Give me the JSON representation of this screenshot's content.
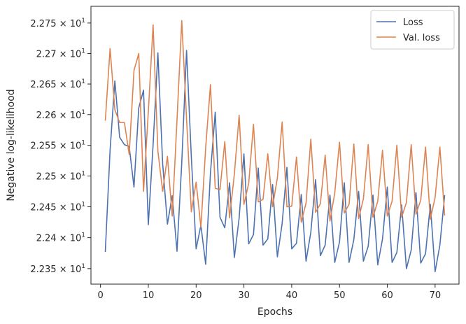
{
  "chart_data": {
    "type": "line",
    "title": "",
    "xlabel": "Epochs",
    "ylabel": "Negative log-likelihood",
    "xlim": [
      -2,
      75
    ],
    "ylim": [
      22.325,
      22.7775
    ],
    "y_scale": "log",
    "grid": false,
    "legend_position": "top-right",
    "x_ticks": [
      0,
      10,
      20,
      30,
      40,
      50,
      60,
      70
    ],
    "x_tick_labels": [
      "0",
      "10",
      "20",
      "30",
      "40",
      "50",
      "60",
      "70"
    ],
    "y_ticks": [
      22.35,
      22.4,
      22.45,
      22.5,
      22.55,
      22.6,
      22.65,
      22.7,
      22.75
    ],
    "y_tick_labels": [
      {
        "mantissa": "2.235",
        "base": "10",
        "exp": "1"
      },
      {
        "mantissa": "2.24",
        "base": "10",
        "exp": "1"
      },
      {
        "mantissa": "2.245",
        "base": "10",
        "exp": "1"
      },
      {
        "mantissa": "2.25",
        "base": "10",
        "exp": "1"
      },
      {
        "mantissa": "2.255",
        "base": "10",
        "exp": "1"
      },
      {
        "mantissa": "2.26",
        "base": "10",
        "exp": "1"
      },
      {
        "mantissa": "2.265",
        "base": "10",
        "exp": "1"
      },
      {
        "mantissa": "2.27",
        "base": "10",
        "exp": "1"
      },
      {
        "mantissa": "2.275",
        "base": "10",
        "exp": "1"
      }
    ],
    "x": [
      1,
      2,
      3,
      4,
      5,
      6,
      7,
      8,
      9,
      10,
      11,
      12,
      13,
      14,
      15,
      16,
      17,
      18,
      19,
      20,
      21,
      22,
      23,
      24,
      25,
      26,
      27,
      28,
      29,
      30,
      31,
      32,
      33,
      34,
      35,
      36,
      37,
      38,
      39,
      40,
      41,
      42,
      43,
      44,
      45,
      46,
      47,
      48,
      49,
      50,
      51,
      52,
      53,
      54,
      55,
      56,
      57,
      58,
      59,
      60,
      61,
      62,
      63,
      64,
      65,
      66,
      67,
      68,
      69,
      70,
      71,
      72
    ],
    "series": [
      {
        "name": "Loss",
        "color": "#4c72b0",
        "values": [
          22.377,
          22.542,
          22.655,
          22.563,
          22.551,
          22.548,
          22.482,
          22.611,
          22.64,
          22.421,
          22.551,
          22.701,
          22.52,
          22.422,
          22.468,
          22.378,
          22.522,
          22.705,
          22.531,
          22.382,
          22.42,
          22.357,
          22.505,
          22.604,
          22.433,
          22.416,
          22.489,
          22.368,
          22.432,
          22.536,
          22.39,
          22.405,
          22.513,
          22.388,
          22.398,
          22.486,
          22.369,
          22.423,
          22.514,
          22.382,
          22.391,
          22.47,
          22.362,
          22.409,
          22.494,
          22.371,
          22.388,
          22.469,
          22.36,
          22.393,
          22.489,
          22.36,
          22.397,
          22.475,
          22.362,
          22.386,
          22.469,
          22.356,
          22.398,
          22.482,
          22.36,
          22.376,
          22.453,
          22.35,
          22.38,
          22.473,
          22.359,
          22.374,
          22.454,
          22.345,
          22.388,
          22.469
        ]
      },
      {
        "name": "Val. loss",
        "color": "#dd8452",
        "values": [
          22.59,
          22.708,
          22.608,
          22.587,
          22.587,
          22.535,
          22.672,
          22.7,
          22.475,
          22.604,
          22.747,
          22.541,
          22.475,
          22.532,
          22.435,
          22.591,
          22.754,
          22.593,
          22.442,
          22.49,
          22.417,
          22.546,
          22.649,
          22.48,
          22.478,
          22.556,
          22.432,
          22.503,
          22.599,
          22.454,
          22.488,
          22.584,
          22.458,
          22.462,
          22.536,
          22.45,
          22.497,
          22.588,
          22.45,
          22.451,
          22.531,
          22.425,
          22.456,
          22.56,
          22.441,
          22.455,
          22.534,
          22.427,
          22.472,
          22.555,
          22.44,
          22.454,
          22.552,
          22.431,
          22.463,
          22.551,
          22.433,
          22.459,
          22.542,
          22.435,
          22.459,
          22.55,
          22.433,
          22.457,
          22.551,
          22.438,
          22.461,
          22.547,
          22.43,
          22.465,
          22.547,
          22.436
        ]
      }
    ]
  }
}
